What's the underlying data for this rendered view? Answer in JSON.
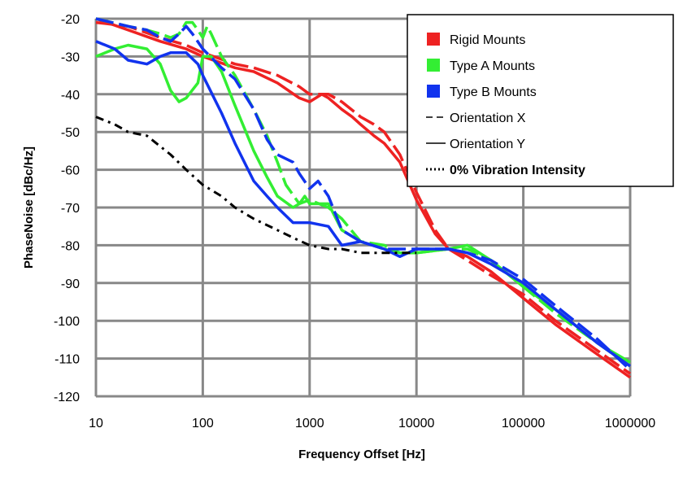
{
  "chart_data": {
    "type": "line",
    "x_scale": "log",
    "xlim": [
      10,
      1000000
    ],
    "ylim": [
      -120,
      -20
    ],
    "x_ticks": [
      10,
      100,
      1000,
      10000,
      100000,
      1000000
    ],
    "x_tick_labels": [
      "10",
      "100",
      "1000",
      "10000",
      "100000",
      "1000000"
    ],
    "y_ticks": [
      -20,
      -30,
      -40,
      -50,
      -60,
      -70,
      -80,
      -90,
      -100,
      -110,
      -120
    ],
    "y_tick_labels": [
      "-20",
      "-30",
      "-40",
      "-50",
      "-60",
      "-70",
      "-80",
      "-90",
      "-100",
      "-110",
      "-120"
    ],
    "xlabel": "Frequency  Offset [Hz]",
    "ylabel": "PhaseNoise  [dBc/Hz]",
    "grid": true,
    "legend_position": "top-right",
    "legend": [
      {
        "label": "Rigid  Mounts",
        "kind": "swatch",
        "color": "#ee2222"
      },
      {
        "label": "Type A Mounts",
        "kind": "swatch",
        "color": "#33ee33"
      },
      {
        "label": "Type B Mounts",
        "kind": "swatch",
        "color": "#1133ee"
      },
      {
        "label": "Orientation  X",
        "kind": "dashed-line",
        "color": "#000000"
      },
      {
        "label": "Orientation  Y",
        "kind": "solid-line",
        "color": "#000000"
      },
      {
        "label": "0% Vibration  Intensity",
        "kind": "dashdot-line",
        "color": "#000000",
        "bold": true
      }
    ],
    "series": [
      {
        "name": "Rigid  Mounts",
        "color": "#ee2222",
        "dash": "solid",
        "points": [
          [
            10,
            -20
          ],
          [
            20,
            -23
          ],
          [
            40,
            -26
          ],
          [
            70,
            -28
          ],
          [
            100,
            -30
          ],
          [
            200,
            -33
          ],
          [
            300,
            -34
          ],
          [
            500,
            -37
          ],
          [
            800,
            -41
          ],
          [
            1000,
            -42
          ],
          [
            1300,
            -40
          ],
          [
            1500,
            -41
          ],
          [
            2000,
            -44
          ],
          [
            2500,
            -46
          ],
          [
            3000,
            -48
          ],
          [
            4000,
            -51
          ],
          [
            5000,
            -53
          ],
          [
            7000,
            -58
          ],
          [
            10000,
            -68
          ],
          [
            15000,
            -77
          ],
          [
            20000,
            -81
          ],
          [
            30000,
            -83
          ],
          [
            50000,
            -87
          ],
          [
            100000,
            -94
          ],
          [
            200000,
            -101
          ],
          [
            500000,
            -109
          ],
          [
            1000000,
            -115
          ]
        ]
      },
      {
        "name": "Rigid  Mounts",
        "color": "#ee2222",
        "dash": "dashed",
        "points": [
          [
            10,
            -21
          ],
          [
            20,
            -22
          ],
          [
            40,
            -25
          ],
          [
            70,
            -27
          ],
          [
            100,
            -29
          ],
          [
            200,
            -32
          ],
          [
            300,
            -33
          ],
          [
            500,
            -35
          ],
          [
            800,
            -38
          ],
          [
            1000,
            -40
          ],
          [
            1500,
            -40
          ],
          [
            2000,
            -42
          ],
          [
            3000,
            -46
          ],
          [
            4000,
            -48
          ],
          [
            5000,
            -50
          ],
          [
            7000,
            -56
          ],
          [
            10000,
            -66
          ],
          [
            15000,
            -76
          ],
          [
            20000,
            -81
          ],
          [
            30000,
            -84
          ],
          [
            50000,
            -88
          ],
          [
            100000,
            -93
          ],
          [
            200000,
            -100
          ],
          [
            500000,
            -108
          ],
          [
            1000000,
            -114
          ]
        ]
      },
      {
        "name": "Type A Mounts",
        "color": "#33ee33",
        "dash": "solid",
        "points": [
          [
            10,
            -30
          ],
          [
            15,
            -28
          ],
          [
            20,
            -27
          ],
          [
            30,
            -28
          ],
          [
            40,
            -32
          ],
          [
            50,
            -39
          ],
          [
            60,
            -42
          ],
          [
            70,
            -41
          ],
          [
            90,
            -37
          ],
          [
            100,
            -30
          ],
          [
            120,
            -30
          ],
          [
            150,
            -34
          ],
          [
            200,
            -43
          ],
          [
            300,
            -55
          ],
          [
            400,
            -62
          ],
          [
            500,
            -67
          ],
          [
            700,
            -70
          ],
          [
            800,
            -69
          ],
          [
            900,
            -67
          ],
          [
            1000,
            -69
          ],
          [
            1500,
            -69
          ],
          [
            2000,
            -76
          ],
          [
            3000,
            -79
          ],
          [
            5000,
            -81
          ],
          [
            7000,
            -82
          ],
          [
            10000,
            -82
          ],
          [
            20000,
            -81
          ],
          [
            30000,
            -80
          ],
          [
            50000,
            -84
          ],
          [
            100000,
            -91
          ],
          [
            200000,
            -97
          ],
          [
            500000,
            -106
          ],
          [
            1000000,
            -111
          ]
        ]
      },
      {
        "name": "Type A Mounts",
        "color": "#33ee33",
        "dash": "dashed",
        "points": [
          [
            10,
            -20
          ],
          [
            20,
            -22
          ],
          [
            30,
            -23
          ],
          [
            40,
            -24
          ],
          [
            50,
            -25
          ],
          [
            60,
            -24
          ],
          [
            70,
            -21
          ],
          [
            80,
            -21
          ],
          [
            90,
            -23
          ],
          [
            100,
            -25
          ],
          [
            110,
            -22
          ],
          [
            120,
            -24
          ],
          [
            150,
            -30
          ],
          [
            200,
            -35
          ],
          [
            300,
            -44
          ],
          [
            400,
            -51
          ],
          [
            500,
            -58
          ],
          [
            600,
            -64
          ],
          [
            800,
            -69
          ],
          [
            1000,
            -68
          ],
          [
            1500,
            -70
          ],
          [
            2000,
            -73
          ],
          [
            3000,
            -79
          ],
          [
            5000,
            -80
          ],
          [
            7000,
            -82
          ],
          [
            10000,
            -82
          ],
          [
            20000,
            -81
          ],
          [
            30000,
            -81
          ],
          [
            50000,
            -84
          ],
          [
            100000,
            -91
          ],
          [
            200000,
            -98
          ],
          [
            500000,
            -106
          ],
          [
            1000000,
            -112
          ]
        ]
      },
      {
        "name": "Type B Mounts",
        "color": "#1133ee",
        "dash": "solid",
        "points": [
          [
            10,
            -26
          ],
          [
            15,
            -28
          ],
          [
            20,
            -31
          ],
          [
            30,
            -32
          ],
          [
            40,
            -30
          ],
          [
            50,
            -29
          ],
          [
            70,
            -29
          ],
          [
            90,
            -32
          ],
          [
            100,
            -35
          ],
          [
            150,
            -45
          ],
          [
            200,
            -53
          ],
          [
            300,
            -63
          ],
          [
            400,
            -67
          ],
          [
            500,
            -70
          ],
          [
            700,
            -74
          ],
          [
            1000,
            -74
          ],
          [
            1500,
            -75
          ],
          [
            2000,
            -80
          ],
          [
            3000,
            -79
          ],
          [
            5000,
            -81
          ],
          [
            7000,
            -83
          ],
          [
            10000,
            -81
          ],
          [
            20000,
            -81
          ],
          [
            30000,
            -82
          ],
          [
            50000,
            -85
          ],
          [
            100000,
            -90
          ],
          [
            200000,
            -97
          ],
          [
            500000,
            -106
          ],
          [
            1000000,
            -112
          ]
        ]
      },
      {
        "name": "Type B Mounts",
        "color": "#1133ee",
        "dash": "dashed",
        "points": [
          [
            10,
            -20
          ],
          [
            20,
            -22
          ],
          [
            30,
            -23
          ],
          [
            40,
            -25
          ],
          [
            50,
            -26
          ],
          [
            60,
            -24
          ],
          [
            70,
            -22
          ],
          [
            80,
            -24
          ],
          [
            100,
            -28
          ],
          [
            150,
            -33
          ],
          [
            200,
            -36
          ],
          [
            300,
            -44
          ],
          [
            400,
            -52
          ],
          [
            500,
            -56
          ],
          [
            700,
            -58
          ],
          [
            800,
            -61
          ],
          [
            1000,
            -65
          ],
          [
            1200,
            -63
          ],
          [
            1500,
            -67
          ],
          [
            2000,
            -76
          ],
          [
            3000,
            -79
          ],
          [
            5000,
            -81
          ],
          [
            10000,
            -81
          ],
          [
            20000,
            -81
          ],
          [
            30000,
            -82
          ],
          [
            50000,
            -84
          ],
          [
            100000,
            -89
          ],
          [
            200000,
            -96
          ],
          [
            500000,
            -105
          ],
          [
            1000000,
            -113
          ]
        ]
      },
      {
        "name": "0% Vibration  Intensity",
        "color": "#000000",
        "dash": "dashdot",
        "points": [
          [
            10,
            -46
          ],
          [
            15,
            -48
          ],
          [
            20,
            -50
          ],
          [
            30,
            -51
          ],
          [
            50,
            -56
          ],
          [
            70,
            -60
          ],
          [
            100,
            -64
          ],
          [
            150,
            -67
          ],
          [
            200,
            -70
          ],
          [
            300,
            -73
          ],
          [
            500,
            -76
          ],
          [
            700,
            -78
          ],
          [
            1000,
            -80
          ],
          [
            1500,
            -81
          ],
          [
            2000,
            -81
          ],
          [
            3000,
            -82
          ],
          [
            5000,
            -82
          ],
          [
            7000,
            -82
          ],
          [
            10000,
            -82
          ]
        ]
      }
    ]
  }
}
